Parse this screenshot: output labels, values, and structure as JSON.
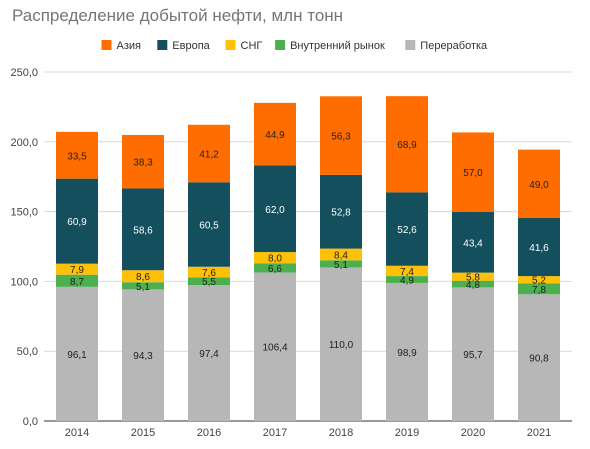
{
  "chart_data": {
    "type": "bar",
    "stacked": true,
    "title": "Распределение добытой нефти, млн тонн",
    "xlabel": "",
    "ylabel": "",
    "ylim": [
      0,
      250
    ],
    "yticks": [
      "0,0",
      "50,0",
      "100,0",
      "150,0",
      "200,0",
      "250,0"
    ],
    "grid": true,
    "legend_position": "top",
    "categories": [
      "2014",
      "2015",
      "2016",
      "2017",
      "2018",
      "2019",
      "2020",
      "2021"
    ],
    "series": [
      {
        "name": "Переработка",
        "color": "#b7b7b7",
        "values": [
          96.1,
          94.3,
          97.4,
          106.4,
          110.0,
          98.9,
          95.7,
          90.8
        ],
        "labels": [
          "96,1",
          "94,3",
          "97,4",
          "106,4",
          "110,0",
          "98,9",
          "95,7",
          "90,8"
        ]
      },
      {
        "name": "Внутренний рынок",
        "color": "#4caf50",
        "values": [
          8.7,
          5.1,
          5.5,
          6.6,
          5.1,
          4.9,
          4.8,
          7.8
        ],
        "labels": [
          "8,7",
          "5,1",
          "5,5",
          "6,6",
          "5,1",
          "4,9",
          "4,8",
          "7,8"
        ]
      },
      {
        "name": "СНГ",
        "color": "#ffc107",
        "values": [
          7.9,
          8.6,
          7.6,
          8.0,
          8.4,
          7.4,
          5.8,
          5.2
        ],
        "labels": [
          "7,9",
          "8,6",
          "7,6",
          "8,0",
          "8,4",
          "7,4",
          "5,8",
          "5,2"
        ]
      },
      {
        "name": "Европа",
        "color": "#134f5c",
        "values": [
          60.9,
          58.6,
          60.5,
          62.0,
          52.8,
          52.6,
          43.4,
          41.6
        ],
        "labels": [
          "60,9",
          "58,6",
          "60,5",
          "62,0",
          "52,8",
          "52,6",
          "43,4",
          "41,6"
        ]
      },
      {
        "name": "Азия",
        "color": "#ff6d01",
        "values": [
          33.5,
          38.3,
          41.2,
          44.9,
          56.3,
          68.9,
          57.0,
          49.0
        ],
        "labels": [
          "33,5",
          "38,3",
          "41,2",
          "44,9",
          "56,3",
          "68,9",
          "57,0",
          "49,0"
        ]
      }
    ],
    "legend_order": [
      "Азия",
      "Европа",
      "СНГ",
      "Внутренний рынок",
      "Переработка"
    ]
  }
}
